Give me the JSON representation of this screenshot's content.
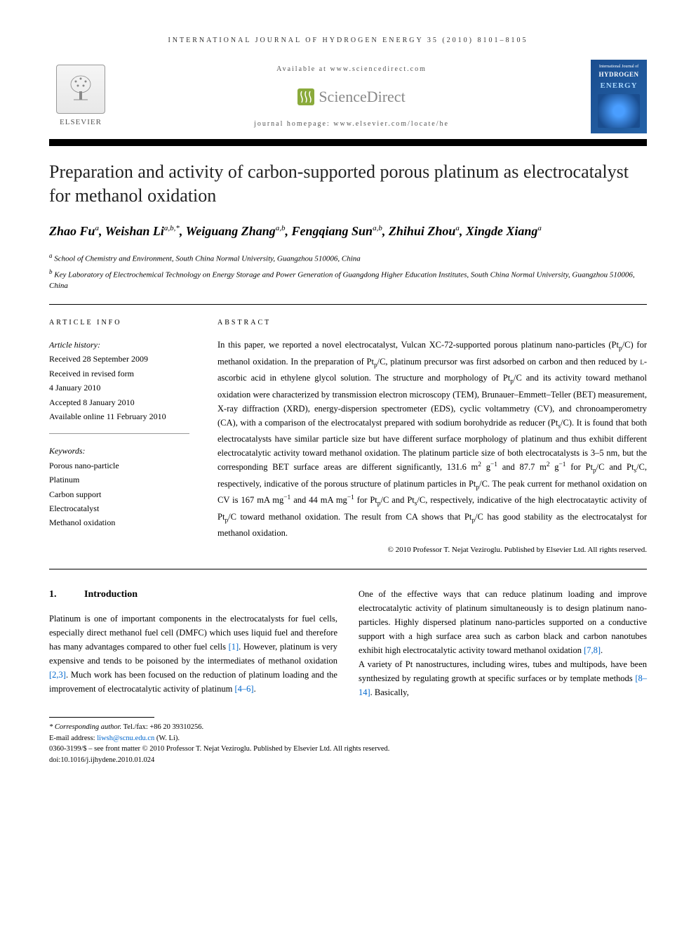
{
  "journal": {
    "header": "INTERNATIONAL JOURNAL OF HYDROGEN ENERGY 35 (2010) 8101–8105",
    "available": "Available at www.sciencedirect.com",
    "homepage": "journal homepage: www.elsevier.com/locate/he",
    "publisher": "ELSEVIER",
    "sciencedirect": "ScienceDirect",
    "cover": {
      "line1": "International Journal of",
      "line2": "HYDROGEN",
      "line3": "ENERGY"
    }
  },
  "article": {
    "title": "Preparation and activity of carbon-supported porous platinum as electrocatalyst for methanol oxidation",
    "authors_html": "Zhao Fu<sup>a</sup>, Weishan Li<sup>a,b,*</sup>, Weiguang Zhang<sup>a,b</sup>, Fengqiang Sun<sup>a,b</sup>, Zhihui Zhou<sup>a</sup>, Xingde Xiang<sup>a</sup>",
    "affiliations": [
      {
        "marker": "a",
        "text": "School of Chemistry and Environment, South China Normal University, Guangzhou 510006, China"
      },
      {
        "marker": "b",
        "text": "Key Laboratory of Electrochemical Technology on Energy Storage and Power Generation of Guangdong Higher Education Institutes, South China Normal University, Guangzhou 510006, China"
      }
    ]
  },
  "info": {
    "heading": "ARTICLE INFO",
    "history_label": "Article history:",
    "history": [
      "Received 28 September 2009",
      "Received in revised form",
      "4 January 2010",
      "Accepted 8 January 2010",
      "Available online 11 February 2010"
    ],
    "keywords_label": "Keywords:",
    "keywords": [
      "Porous nano-particle",
      "Platinum",
      "Carbon support",
      "Electrocatalyst",
      "Methanol oxidation"
    ]
  },
  "abstract": {
    "heading": "ABSTRACT",
    "text_html": "In this paper, we reported a novel electrocatalyst, Vulcan XC-72-supported porous platinum nano-particles (Pt<sub>p</sub>/C) for methanol oxidation. In the preparation of Pt<sub>p</sub>/C, platinum precursor was first adsorbed on carbon and then reduced by <span style='font-variant:small-caps'>l</span>-ascorbic acid in ethylene glycol solution. The structure and morphology of Pt<sub>p</sub>/C and its activity toward methanol oxidation were characterized by transmission electron microscopy (TEM), Brunauer–Emmett–Teller (BET) measurement, X-ray diffraction (XRD), energy-dispersion spectrometer (EDS), cyclic voltammetry (CV), and chronoamperometry (CA), with a comparison of the electrocatalyst prepared with sodium borohydride as reducer (Pt<sub>s</sub>/C). It is found that both electrocatalysts have similar particle size but have different surface morphology of platinum and thus exhibit different electrocatalytic activity toward methanol oxidation. The platinum particle size of both electrocatalysts is 3–5 nm, but the corresponding BET surface areas are different significantly, 131.6 m<sup>2</sup> g<sup>−1</sup> and 87.7 m<sup>2</sup> g<sup>−1</sup> for Pt<sub>p</sub>/C and Pt<sub>s</sub>/C, respectively, indicative of the porous structure of platinum particles in Pt<sub>p</sub>/C. The peak current for methanol oxidation on CV is 167 mA mg<sup>−1</sup> and 44 mA mg<sup>−1</sup> for Pt<sub>p</sub>/C and Pt<sub>s</sub>/C, respectively, indicative of the high electrocataytic activity of Pt<sub>p</sub>/C toward methanol oxidation. The result from CA shows that Pt<sub>p</sub>/C has good stability as the electrocatalyst for methanol oxidation.",
    "copyright": "© 2010 Professor T. Nejat Veziroglu. Published by Elsevier Ltd. All rights reserved."
  },
  "body": {
    "section1": {
      "num": "1.",
      "title": "Introduction",
      "col1_html": "Platinum is one of important components in the electrocatalysts for fuel cells, especially direct methanol fuel cell (DMFC) which uses liquid fuel and therefore has many advantages compared to other fuel cells <span class='ref-link'>[1]</span>. However, platinum is very expensive and tends to be poisoned by the intermediates of methanol oxidation <span class='ref-link'>[2,3]</span>. Much work has been focused on the reduction of platinum loading and the improvement of electrocatalytic activity of platinum <span class='ref-link'>[4–6]</span>.",
      "col2_p1_html": "One of the effective ways that can reduce platinum loading and improve electrocatalytic activity of platinum simultaneously is to design platinum nano-particles. Highly dispersed platinum nano-particles supported on a conductive support with a high surface area such as carbon black and carbon nanotubes exhibit high electrocatalytic activity toward methanol oxidation <span class='ref-link'>[7,8]</span>.",
      "col2_p2_html": "A variety of Pt nanostructures, including wires, tubes and multipods, have been synthesized by regulating growth at specific surfaces or by template methods <span class='ref-link'>[8–14]</span>. Basically,"
    }
  },
  "footer": {
    "corr_label": "* Corresponding author.",
    "corr_contact": "Tel./fax: +86 20 39310256.",
    "email_label": "E-mail address:",
    "email": "liwsh@scnu.edu.cn",
    "email_name": "(W. Li).",
    "issn_line": "0360-3199/$ – see front matter © 2010 Professor T. Nejat Veziroglu. Published by Elsevier Ltd. All rights reserved.",
    "doi": "doi:10.1016/j.ijhydene.2010.01.024"
  },
  "colors": {
    "link": "#0066cc",
    "cover_bg": "#1a4d8f",
    "sd_green": "#8aaa3b"
  }
}
